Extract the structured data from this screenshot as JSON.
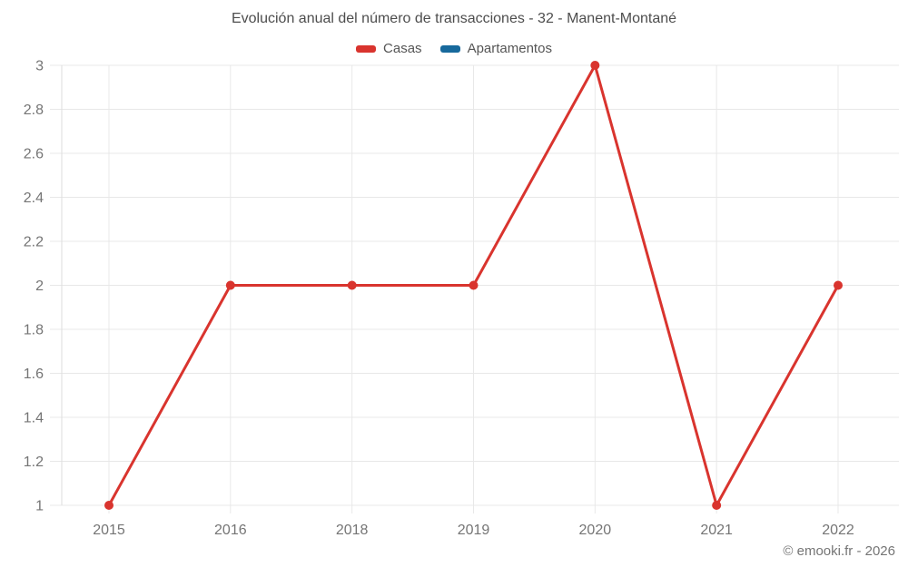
{
  "title": "Evolución anual del número de transacciones - 32 - Manent-Montané",
  "footer": "© emooki.fr - 2026",
  "legend": [
    {
      "label": "Casas",
      "color": "#d9342e"
    },
    {
      "label": "Apartamentos",
      "color": "#17699c"
    }
  ],
  "chart_data": {
    "type": "line",
    "title": "Evolución anual del número de transacciones - 32 - Manent-Montané",
    "categories": [
      "2015",
      "2016",
      "2018",
      "2019",
      "2020",
      "2021",
      "2022"
    ],
    "series": [
      {
        "name": "Casas",
        "color": "#d9342e",
        "values": [
          1,
          2,
          2,
          2,
          3,
          1,
          2
        ]
      },
      {
        "name": "Apartamentos",
        "color": "#17699c",
        "values": []
      }
    ],
    "xlabel": "",
    "ylabel": "",
    "ylim": [
      1,
      3
    ],
    "ytick_step": 0.2,
    "grid": true,
    "legend_position": "top"
  }
}
